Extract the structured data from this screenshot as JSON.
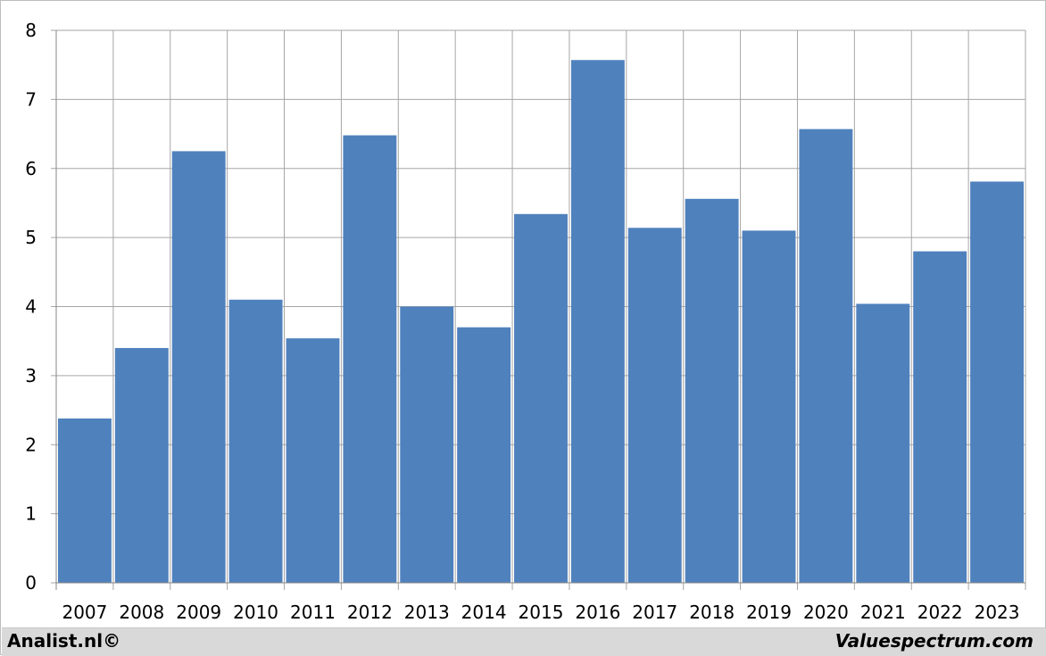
{
  "chart_data": {
    "type": "bar",
    "categories": [
      "2007",
      "2008",
      "2009",
      "2010",
      "2011",
      "2012",
      "2013",
      "2014",
      "2015",
      "2016",
      "2017",
      "2018",
      "2019",
      "2020",
      "2021",
      "2022",
      "2023"
    ],
    "values": [
      2.38,
      3.4,
      6.25,
      4.1,
      3.54,
      6.48,
      4.0,
      3.7,
      5.34,
      7.57,
      5.14,
      5.56,
      5.1,
      6.57,
      4.04,
      4.8,
      5.81
    ],
    "title": "",
    "xlabel": "",
    "ylabel": "",
    "ylim": [
      0,
      8
    ],
    "yticks": [
      "0",
      "1",
      "2",
      "3",
      "4",
      "5",
      "6",
      "7",
      "8"
    ],
    "grid": true,
    "bar_color": "#4f81bd",
    "grid_color": "#a6a6a6"
  },
  "footer": {
    "left_text": "Analist.nl©",
    "right_text": "Valuespectrum.com"
  }
}
